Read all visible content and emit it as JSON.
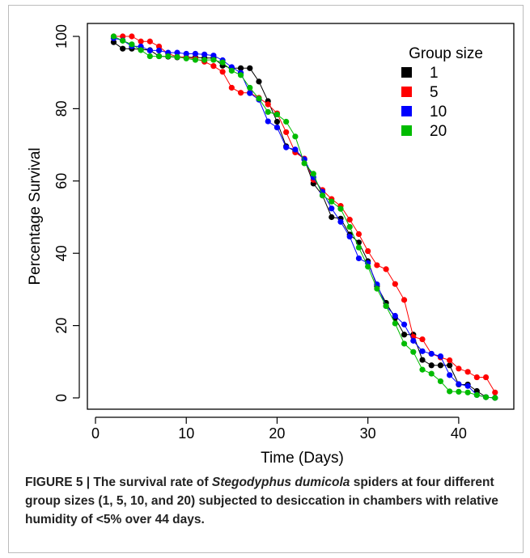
{
  "chart_data": {
    "type": "line",
    "xlabel": "Time (Days)",
    "ylabel": "Percentage Survival",
    "xlim": [
      0,
      45
    ],
    "ylim": [
      0,
      100
    ],
    "xticks": [
      0,
      10,
      20,
      30,
      40
    ],
    "yticks": [
      0,
      20,
      40,
      60,
      80,
      100
    ],
    "grid": false,
    "legend": {
      "title": "Group size",
      "placement": "top-right"
    },
    "series": [
      {
        "name": "1",
        "color": "#000000",
        "x": [
          2,
          3,
          4,
          5,
          6,
          7,
          8,
          9,
          10,
          11,
          12,
          13,
          14,
          15,
          16,
          17,
          18,
          19,
          20,
          21,
          22,
          23,
          24,
          25,
          26,
          27,
          28,
          29,
          30,
          31,
          32,
          33,
          34,
          35,
          36,
          37,
          38,
          39,
          40,
          41,
          42,
          43,
          44
        ],
        "y": [
          98.4,
          96.6,
          96.6,
          96.4,
          96.2,
          94.5,
          94.4,
          94.2,
          94.2,
          94.2,
          94,
          94,
          91.9,
          91.2,
          91.2,
          91.2,
          87.5,
          82.1,
          76.4,
          69.6,
          68.2,
          66,
          59.3,
          56,
          50,
          49.6,
          45.2,
          43,
          37.8,
          30.9,
          26.3,
          22.1,
          17.5,
          17.5,
          10.5,
          9,
          9,
          9,
          3.7,
          3.7,
          1.9,
          0.2,
          0
        ]
      },
      {
        "name": "5",
        "color": "#ff0000",
        "x": [
          2,
          3,
          4,
          5,
          6,
          7,
          8,
          9,
          10,
          11,
          12,
          13,
          14,
          15,
          16,
          17,
          18,
          19,
          20,
          21,
          22,
          23,
          24,
          25,
          26,
          27,
          28,
          29,
          30,
          31,
          32,
          33,
          34,
          35,
          36,
          37,
          38,
          39,
          40,
          41,
          42,
          43,
          44
        ],
        "y": [
          100,
          100,
          100,
          98.6,
          98.6,
          97.2,
          95.2,
          94.4,
          94.2,
          93.8,
          93,
          91.8,
          90.2,
          85.8,
          84.4,
          84.4,
          83,
          81.2,
          78.7,
          73.5,
          67.9,
          66.2,
          60.3,
          57.5,
          55,
          53.1,
          49.3,
          45.3,
          40.6,
          36.7,
          35.6,
          31.5,
          27.1,
          16.9,
          16.2,
          12.2,
          11.2,
          10.4,
          8.1,
          7.2,
          5.7,
          5.7,
          1.5
        ]
      },
      {
        "name": "10",
        "color": "#0000ff",
        "x": [
          2,
          3,
          4,
          5,
          6,
          7,
          8,
          9,
          10,
          11,
          12,
          13,
          14,
          15,
          16,
          17,
          18,
          19,
          20,
          21,
          22,
          23,
          24,
          25,
          26,
          27,
          28,
          29,
          30,
          31,
          32,
          33,
          34,
          35,
          36,
          37,
          38,
          39,
          40,
          41,
          42,
          43,
          44
        ],
        "y": [
          99.5,
          98.9,
          97.3,
          97.2,
          96.1,
          96.1,
          95.5,
          95.5,
          95.2,
          95.2,
          95,
          94.7,
          93.4,
          91.5,
          89.9,
          84.3,
          82.5,
          76.5,
          74.8,
          69.3,
          68.7,
          66,
          61,
          57,
          52.4,
          48.7,
          44.6,
          38.6,
          37.3,
          31.4,
          25.4,
          22.7,
          20.3,
          15.8,
          12.9,
          12.2,
          11.5,
          6.3,
          3.8,
          3.3,
          0.8,
          0.2,
          0
        ]
      },
      {
        "name": "20",
        "color": "#00bb00",
        "x": [
          2,
          3,
          4,
          5,
          6,
          7,
          8,
          9,
          10,
          11,
          12,
          13,
          14,
          15,
          16,
          17,
          18,
          19,
          20,
          21,
          22,
          23,
          24,
          25,
          26,
          27,
          28,
          29,
          30,
          31,
          32,
          33,
          34,
          35,
          36,
          37,
          38,
          39,
          40,
          41,
          42,
          43,
          44
        ],
        "y": [
          100,
          98.8,
          97.8,
          96.2,
          94.5,
          94.5,
          94.5,
          94.3,
          93.9,
          93.5,
          93.5,
          93.5,
          92.8,
          90.5,
          89.3,
          85.8,
          82.8,
          79.1,
          78.4,
          76.4,
          72.3,
          64.9,
          62,
          56,
          54.3,
          52.3,
          47.3,
          41.6,
          36.3,
          30.2,
          25.4,
          20.6,
          15,
          12.7,
          7.8,
          6.7,
          4.6,
          1.8,
          1.7,
          1.5,
          0.8,
          0.2,
          0
        ]
      }
    ]
  },
  "caption": {
    "lead": "FIGURE 5 | The survival rate of ",
    "species": "Stegodyphus dumicola",
    "rest": " spiders at four different group sizes (1, 5, 10, and 20) subjected to desiccation in chambers with relative humidity of <5% over 44 days."
  }
}
